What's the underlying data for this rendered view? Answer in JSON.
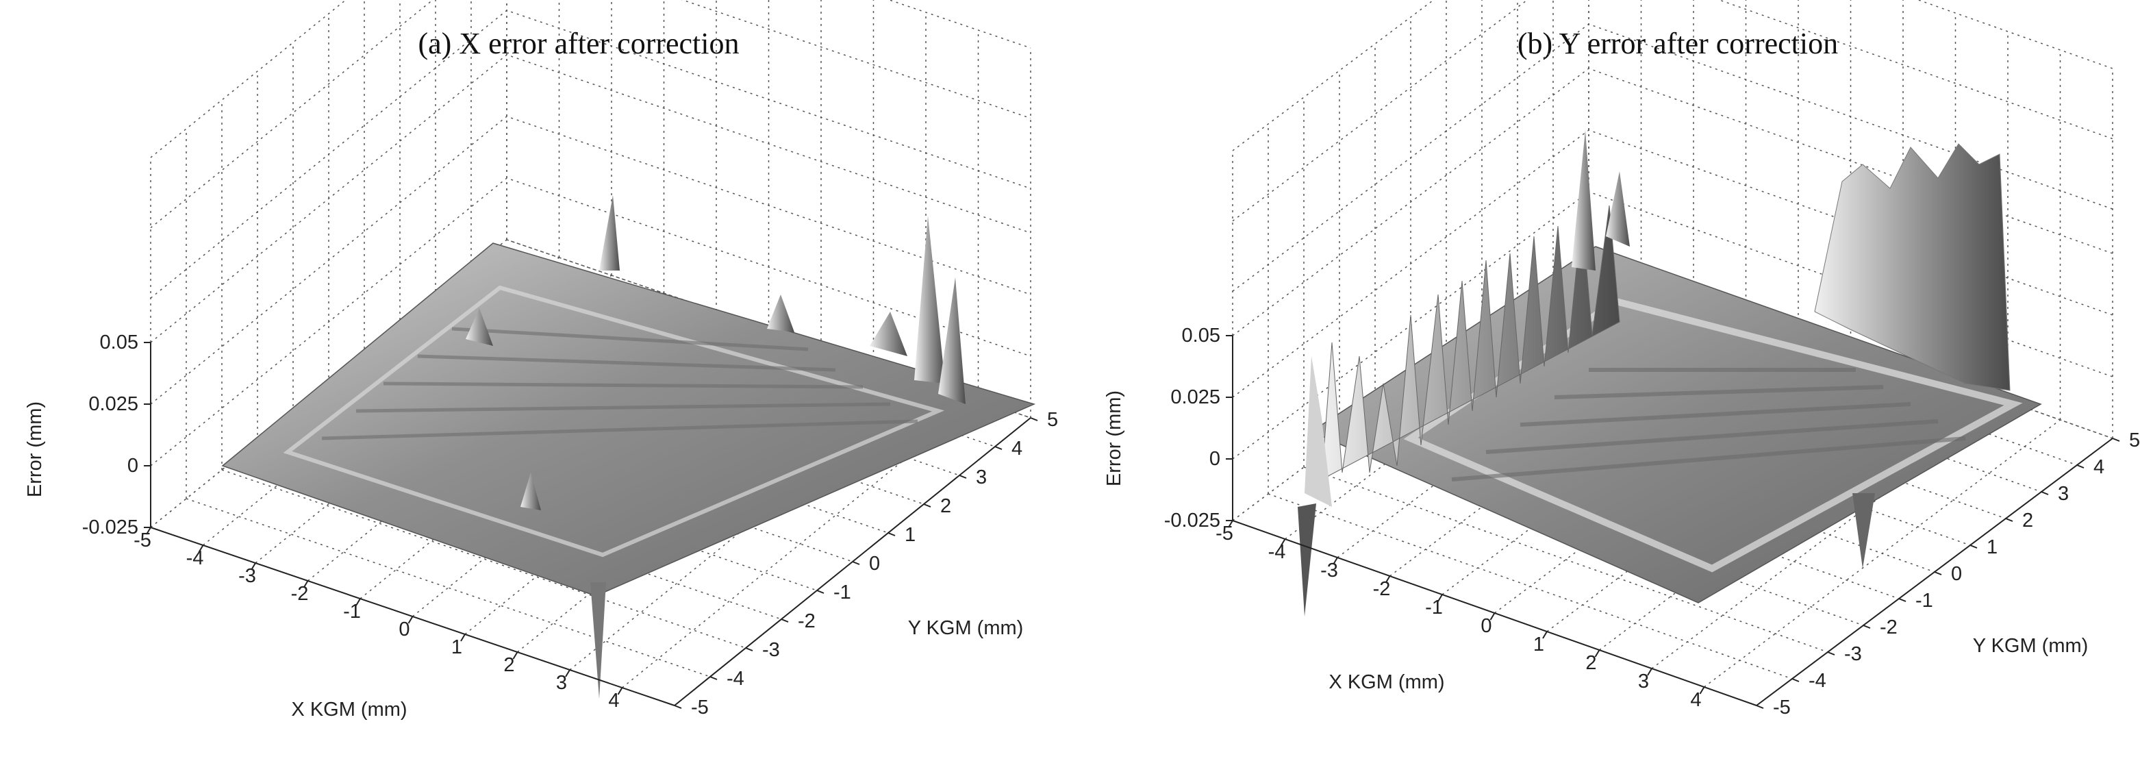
{
  "chart_data": [
    {
      "type": "surface",
      "title": "(a) X error after correction",
      "xlabel": "X KGM (mm)",
      "ylabel": "Y KGM (mm)",
      "zlabel": "Error (mm)",
      "x_ticks": [
        "-5",
        "-4",
        "-3",
        "-2",
        "-1",
        "0",
        "1",
        "2",
        "3",
        "4"
      ],
      "y_ticks": [
        "-5",
        "-4",
        "-3",
        "-2",
        "-1",
        "0",
        "1",
        "2",
        "3",
        "4",
        "5"
      ],
      "z_ticks": [
        "-0.025",
        "0",
        "0.025",
        "0.05"
      ],
      "xlim": [
        -5,
        5
      ],
      "ylim": [
        -5,
        5
      ],
      "zlim": [
        -0.025,
        0.05
      ],
      "grid": true,
      "surface_color": "#9a9a9a",
      "surface_description_points": [
        {
          "x": 3.0,
          "y": -4.0,
          "z": -0.045
        },
        {
          "x": 4.5,
          "y": 4.2,
          "z": 0.045
        },
        {
          "x": 1.5,
          "y": 4.0,
          "z": 0.04
        },
        {
          "x": 0.0,
          "y": 0.0,
          "z": 0.0
        }
      ]
    },
    {
      "type": "surface",
      "title": "(b) Y error after correction",
      "xlabel": "X KGM (mm)",
      "ylabel": "Y KGM (mm)",
      "zlabel": "Error (mm)",
      "x_ticks": [
        "-5",
        "-4",
        "-3",
        "-2",
        "-1",
        "0",
        "1",
        "2",
        "3",
        "4"
      ],
      "y_ticks": [
        "-5",
        "-4",
        "-3",
        "-2",
        "-1",
        "0",
        "1",
        "2",
        "3",
        "4",
        "5"
      ],
      "z_ticks": [
        "-0.025",
        "0",
        "0.025",
        "0.05"
      ],
      "xlim": [
        -5,
        5
      ],
      "ylim": [
        -5,
        5
      ],
      "zlim": [
        -0.025,
        0.05
      ],
      "grid": true,
      "surface_color": "#9a9a9a",
      "surface_description_points": [
        {
          "x": -4.5,
          "y": -4.5,
          "z": -0.05
        },
        {
          "x": 4.0,
          "y": 3.5,
          "z": 0.07
        },
        {
          "x": -2.0,
          "y": 4.0,
          "z": 0.06
        },
        {
          "x": 0.0,
          "y": 0.0,
          "z": 0.0
        }
      ]
    }
  ]
}
